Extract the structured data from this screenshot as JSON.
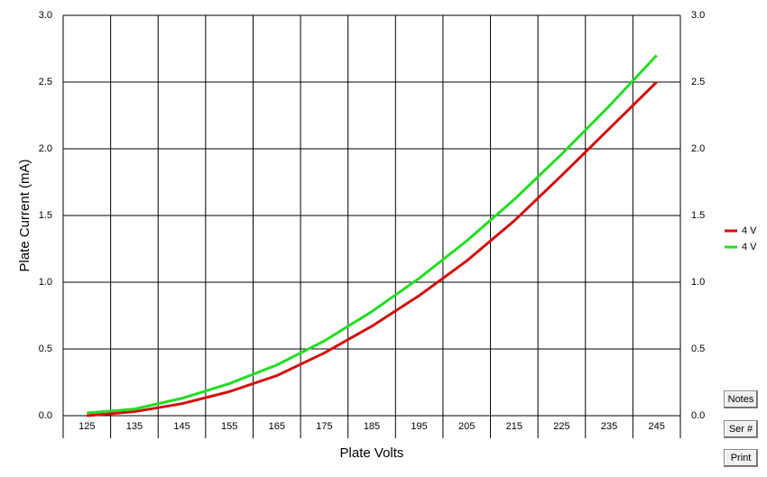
{
  "chart_data": {
    "type": "line",
    "xlabel": "Plate Volts",
    "ylabel": "Plate Current (mA)",
    "x": [
      125,
      135,
      145,
      155,
      165,
      175,
      185,
      195,
      205,
      215,
      225,
      235,
      245
    ],
    "series": [
      {
        "name": "4 V",
        "color": "#d01010",
        "values": [
          0.0,
          0.03,
          0.09,
          0.18,
          0.3,
          0.47,
          0.67,
          0.9,
          1.16,
          1.46,
          1.8,
          2.15,
          2.5
        ]
      },
      {
        "name": "4 V",
        "color": "#22dd22",
        "values": [
          0.02,
          0.05,
          0.13,
          0.24,
          0.38,
          0.56,
          0.78,
          1.03,
          1.31,
          1.62,
          1.96,
          2.32,
          2.7
        ]
      }
    ],
    "xlim": [
      120,
      250
    ],
    "xticks": [
      125,
      135,
      145,
      155,
      165,
      175,
      185,
      195,
      205,
      215,
      225,
      235,
      245
    ],
    "ylim": [
      0,
      3
    ],
    "yticks": [
      {
        "value": 0,
        "label": "0.0"
      },
      {
        "value": 0.5,
        "label": "0.5"
      },
      {
        "value": 1,
        "label": "1.0"
      },
      {
        "value": 1.5,
        "label": "1.5"
      },
      {
        "value": 2,
        "label": "2.0"
      },
      {
        "value": 2.5,
        "label": "2.5"
      },
      {
        "value": 3,
        "label": "3.0"
      }
    ],
    "y2lim": [
      0,
      3
    ],
    "y2ticks": [
      {
        "value": 0,
        "label": "0.0"
      },
      {
        "value": 0.5,
        "label": "0.5"
      },
      {
        "value": 1,
        "label": "1.0"
      },
      {
        "value": 1.5,
        "label": "1.5"
      },
      {
        "value": 2,
        "label": "2.0"
      },
      {
        "value": 2.5,
        "label": "2.5"
      },
      {
        "value": 3,
        "label": "3.0"
      }
    ],
    "grid": true,
    "legend": "right"
  },
  "buttons": [
    "Notes",
    "Ser #",
    "Print"
  ]
}
